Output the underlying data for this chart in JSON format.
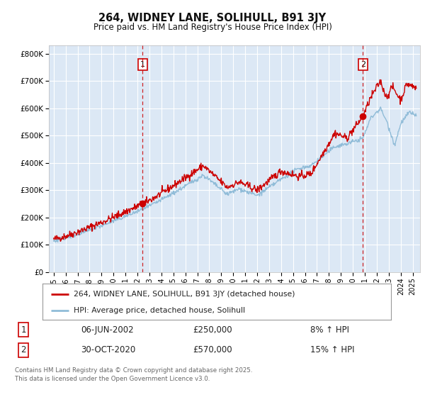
{
  "title": "264, WIDNEY LANE, SOLIHULL, B91 3JY",
  "subtitle": "Price paid vs. HM Land Registry's House Price Index (HPI)",
  "fig_bg_color": "#ffffff",
  "plot_bg_color": "#dce8f5",
  "grid_color": "#ffffff",
  "red_line_color": "#cc0000",
  "blue_line_color": "#90bcd8",
  "vline_color": "#cc0000",
  "annotation_box_color": "#cc0000",
  "ylim": [
    0,
    830000
  ],
  "xlim_start": 1994.6,
  "xlim_end": 2025.6,
  "ytick_labels": [
    "£0",
    "£100K",
    "£200K",
    "£300K",
    "£400K",
    "£500K",
    "£600K",
    "£700K",
    "£800K"
  ],
  "ytick_values": [
    0,
    100000,
    200000,
    300000,
    400000,
    500000,
    600000,
    700000,
    800000
  ],
  "legend_entry1": "264, WIDNEY LANE, SOLIHULL, B91 3JY (detached house)",
  "legend_entry2": "HPI: Average price, detached house, Solihull",
  "marker1_date": 2002.43,
  "marker1_value": 250000,
  "marker2_date": 2020.83,
  "marker2_value": 570000,
  "note1_label": "1",
  "note1_date": "06-JUN-2002",
  "note1_price": "£250,000",
  "note1_hpi": "8% ↑ HPI",
  "note2_label": "2",
  "note2_date": "30-OCT-2020",
  "note2_price": "£570,000",
  "note2_hpi": "15% ↑ HPI",
  "footer": "Contains HM Land Registry data © Crown copyright and database right 2025.\nThis data is licensed under the Open Government Licence v3.0."
}
